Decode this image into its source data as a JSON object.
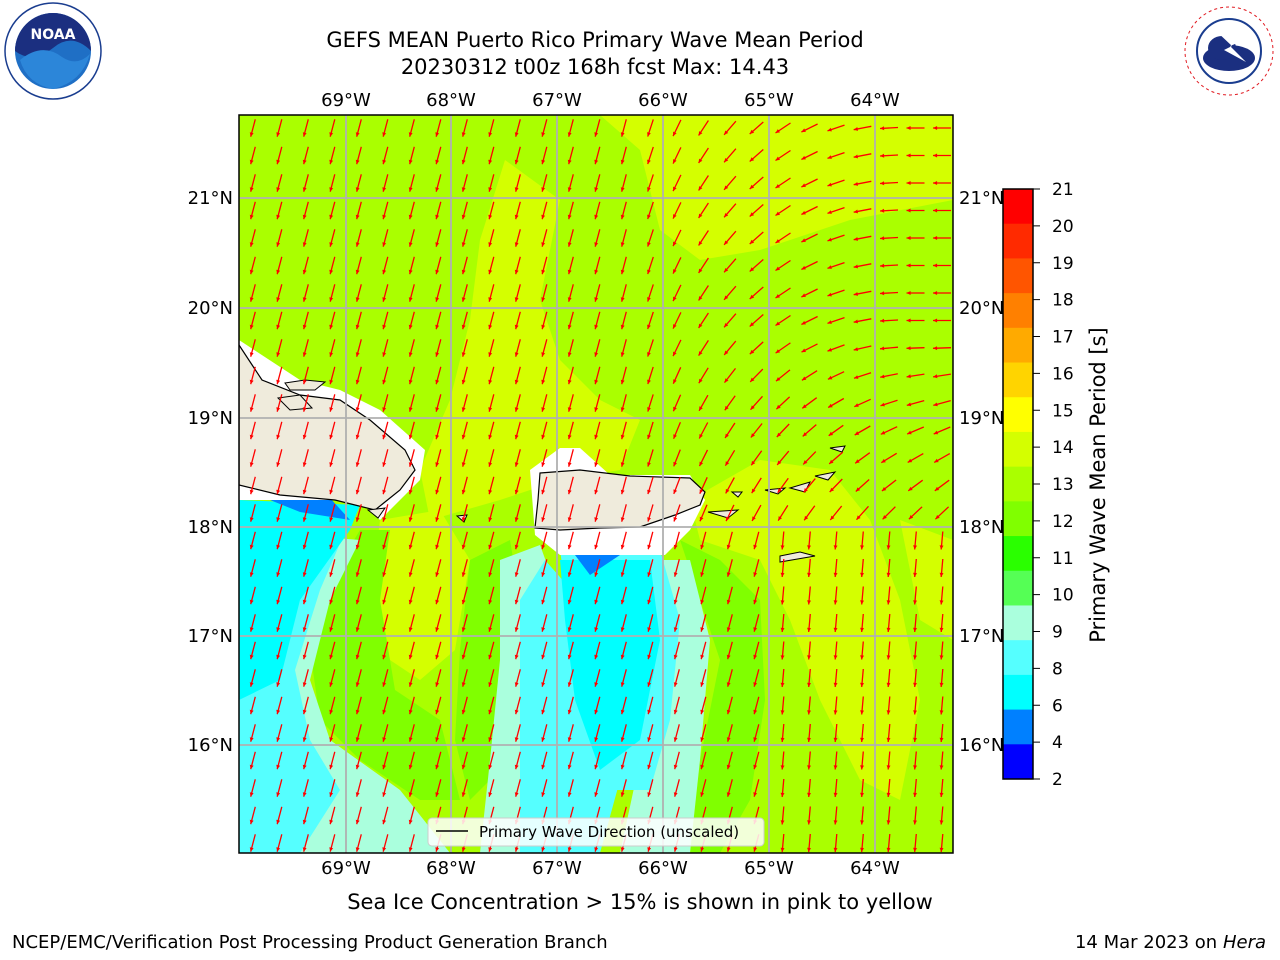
{
  "header": {
    "title_line1": "GEFS MEAN Puerto Rico Primary Wave Mean Period",
    "title_line2": "20230312 t00z 168h fcst   Max: 14.43"
  },
  "logos": {
    "left": "NOAA",
    "right": "NATIONAL WEATHER SERVICE"
  },
  "map": {
    "lon_labels": [
      "69°W",
      "68°W",
      "67°W",
      "66°W",
      "65°W",
      "64°W"
    ],
    "lat_labels": [
      "21°N",
      "20°N",
      "19°N",
      "18°N",
      "17°N",
      "16°N"
    ],
    "legend_label": "Primary Wave Direction (unscaled)",
    "arrow_color": "#ff0000",
    "land_color": "#efebdc"
  },
  "colorbar": {
    "label": "Primary Wave Mean Period [s]",
    "ticks": [
      "21",
      "20",
      "19",
      "18",
      "17",
      "16",
      "15",
      "14",
      "13",
      "12",
      "11",
      "10",
      "9",
      "8",
      "6",
      "4",
      "2"
    ],
    "colors": [
      "#ff0000",
      "#ff2a00",
      "#ff5500",
      "#ff8000",
      "#ffaa00",
      "#ffd400",
      "#ffff00",
      "#d4ff00",
      "#aaff00",
      "#80ff00",
      "#2aff00",
      "#55ff55",
      "#aaffdd",
      "#55ffff",
      "#00ffff",
      "#0080ff",
      "#0000ff"
    ]
  },
  "caption": "Sea Ice Concentration > 15% is shown in pink to yellow",
  "footer": {
    "left": "NCEP/EMC/Verification Post Processing Product Generation Branch",
    "right_date": "14 Mar 2023 on",
    "right_host": "Hera"
  }
}
